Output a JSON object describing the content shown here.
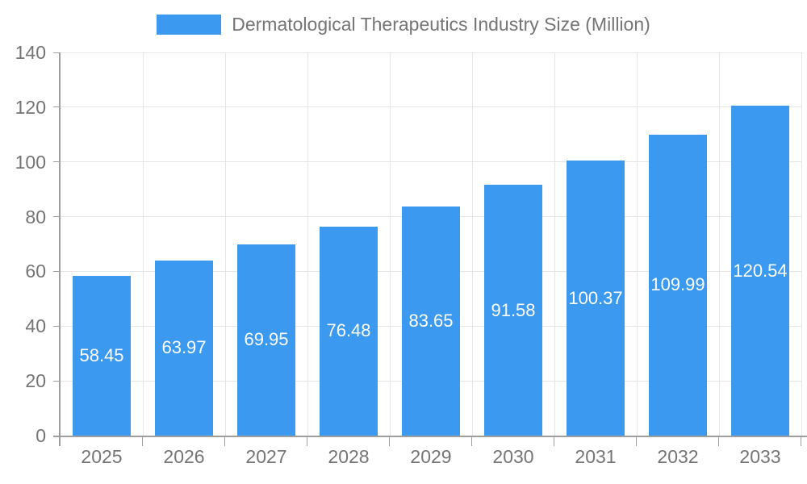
{
  "chart_data": {
    "type": "bar",
    "title": "Dermatological Therapeutics Industry Size (Million)",
    "legend": {
      "label": "Dermatological Therapeutics Industry Size (Million)",
      "position": "top-center"
    },
    "categories": [
      "2025",
      "2026",
      "2027",
      "2028",
      "2029",
      "2030",
      "2031",
      "2032",
      "2033"
    ],
    "values": [
      58.45,
      63.97,
      69.95,
      76.48,
      83.65,
      91.58,
      100.37,
      109.99,
      120.54
    ],
    "value_labels": [
      "58.45",
      "63.97",
      "69.95",
      "76.48",
      "83.65",
      "91.58",
      "100.37",
      "109.99",
      "120.54"
    ],
    "xlabel": "",
    "ylabel": "",
    "ylim": [
      0,
      140
    ],
    "yticks": [
      0,
      20,
      40,
      60,
      80,
      100,
      120,
      140
    ],
    "grid": "horizontal and vertical light gray gridlines",
    "colors": {
      "bar": "#3B99F0",
      "axis": "#9E9E9E",
      "grid": "#E6E6E6",
      "text": "#757575",
      "value_label": "#FFFFFF",
      "background": "#FFFFFF"
    }
  }
}
